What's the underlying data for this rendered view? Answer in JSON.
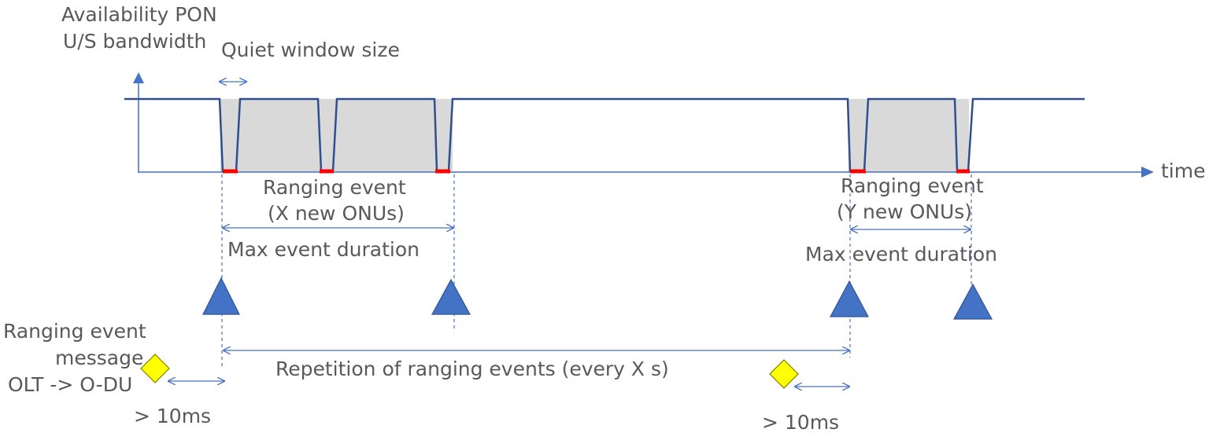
{
  "axes": {
    "y_label_line1": "Availability PON",
    "y_label_line2": "U/S bandwidth",
    "x_label": "time"
  },
  "quiet_window": {
    "label": "Quiet window size"
  },
  "event_1": {
    "title_line1": "Ranging event",
    "title_line2": "(X new ONUs)",
    "duration_label": "Max event duration"
  },
  "event_2": {
    "title_line1": "Ranging event",
    "title_line2": "(Y new ONUs)",
    "duration_label": "Max event duration"
  },
  "message": {
    "line1": "Ranging event",
    "line2": "message",
    "line3": "OLT -> O-DU",
    "lead_time_1": "> 10ms",
    "lead_time_2": "> 10ms"
  },
  "repetition": {
    "label": "Repetition of ranging events (every X s)"
  },
  "colors": {
    "signal_line": "#2F4F8F",
    "axis": "#4472C4",
    "shaded": "#D9D9D9",
    "quiet_mark": "#FF0000",
    "triangle": "#4472C4",
    "diamond": "#FFFF00",
    "text": "#595959"
  }
}
